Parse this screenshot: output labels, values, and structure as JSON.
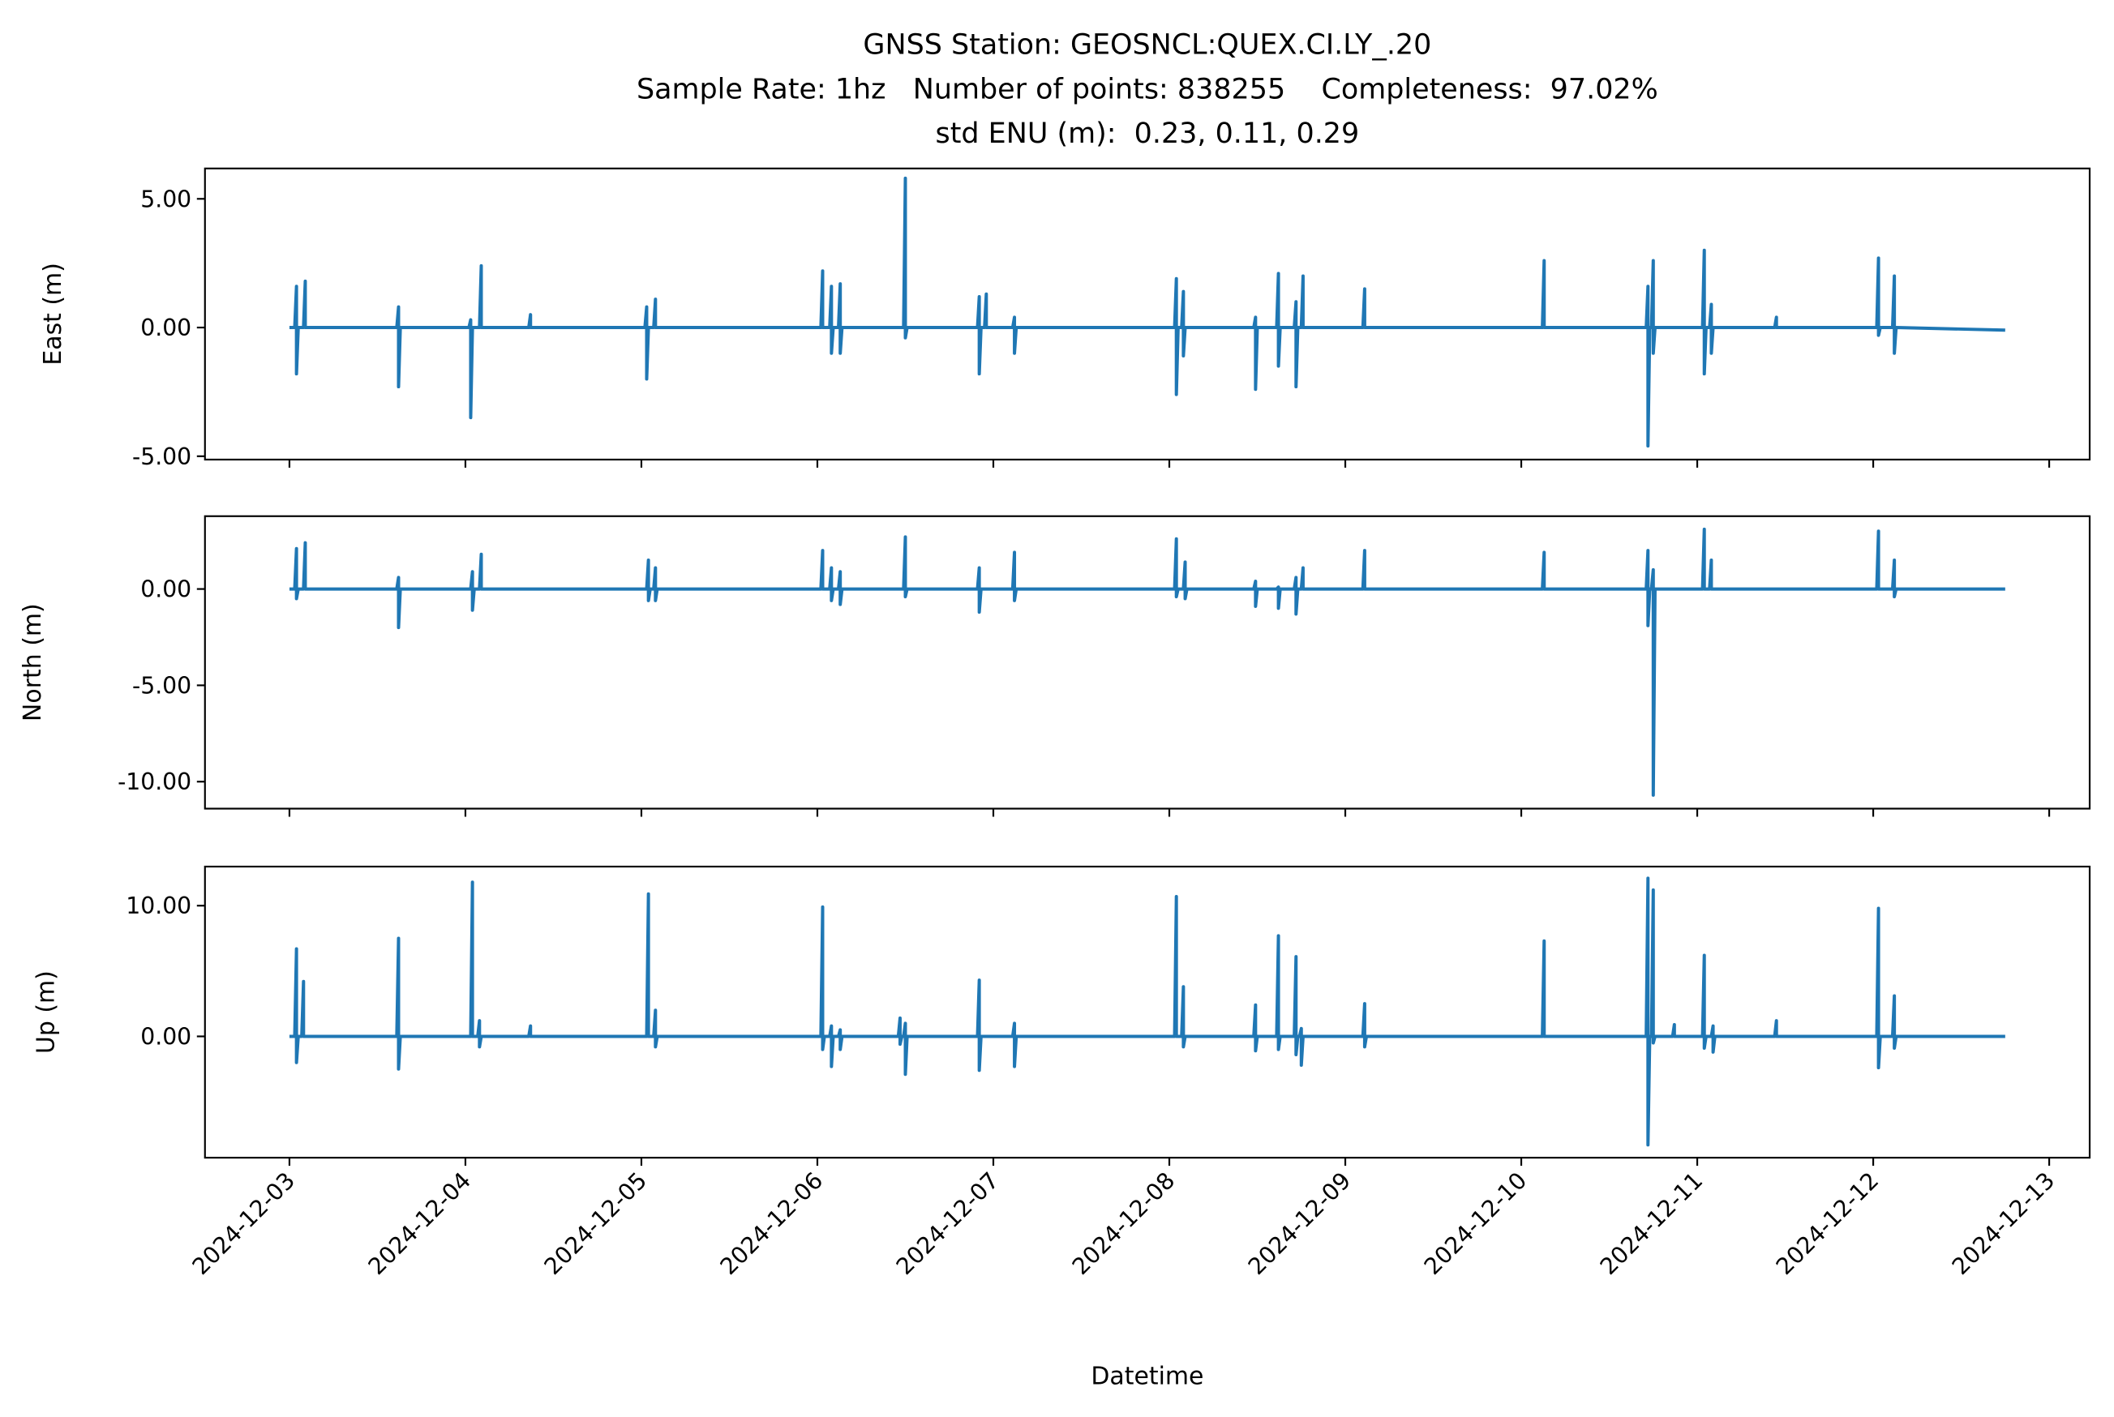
{
  "title": [
    "GNSS Station: GEOSNCL:QUEX.CI.LY_.20",
    "Sample Rate: 1hz   Number of points: 838255    Completeness:  97.02%",
    "std ENU (m):  0.23, 0.11, 0.29"
  ],
  "chart_data": [
    {
      "type": "line",
      "ylabel": "East (m)",
      "xlim": [
        -0.48,
        10.23
      ],
      "ylim": [
        -5.13,
        6.18
      ],
      "yticks": [
        {
          "value": -5,
          "label": "-5.00"
        },
        {
          "value": 0,
          "label": "0.00"
        },
        {
          "value": 5,
          "label": "5.00"
        }
      ],
      "x": [
        0,
        0.03,
        0.04,
        0.04,
        0.05,
        0.08,
        0.09,
        0.09,
        0.1,
        0.61,
        0.62,
        0.62,
        0.63,
        1.02,
        1.03,
        1.03,
        1.04,
        1.08,
        1.09,
        1.09,
        1.1,
        1.36,
        1.37,
        1.37,
        1.38,
        2.02,
        2.03,
        2.03,
        2.04,
        2.07,
        2.08,
        2.08,
        2.09,
        3.02,
        3.03,
        3.03,
        3.04,
        3.07,
        3.08,
        3.08,
        3.09,
        3.12,
        3.13,
        3.13,
        3.14,
        3.49,
        3.5,
        3.5,
        3.51,
        3.91,
        3.92,
        3.92,
        3.93,
        3.95,
        3.96,
        3.96,
        3.97,
        4.11,
        4.12,
        4.12,
        4.13,
        5.03,
        5.04,
        5.04,
        5.05,
        5.07,
        5.08,
        5.08,
        5.09,
        5.48,
        5.49,
        5.49,
        5.5,
        5.61,
        5.62,
        5.62,
        5.63,
        5.71,
        5.72,
        5.72,
        5.73,
        5.75,
        5.76,
        5.76,
        5.77,
        6.1,
        6.11,
        6.11,
        6.12,
        7.12,
        7.13,
        7.13,
        7.14,
        7.71,
        7.72,
        7.72,
        7.73,
        7.74,
        7.75,
        7.75,
        7.76,
        8.03,
        8.04,
        8.04,
        8.05,
        8.07,
        8.08,
        8.08,
        8.09,
        8.44,
        8.45,
        8.45,
        8.46,
        9.02,
        9.03,
        9.03,
        9.04,
        9.11,
        9.12,
        9.12,
        9.13,
        9.75
      ],
      "series": [
        {
          "color": "#1f77b4",
          "values": [
            0,
            0,
            1.6,
            -1.8,
            0,
            0,
            1.8,
            0,
            0,
            0,
            0.8,
            -2.3,
            0,
            0,
            0.3,
            -3.5,
            0,
            0,
            2.4,
            0,
            0,
            0,
            0.5,
            0,
            0,
            0,
            0.8,
            -2.0,
            0,
            0,
            1.1,
            0,
            0,
            0,
            2.2,
            0,
            0,
            0,
            1.6,
            -1.0,
            0,
            0,
            1.7,
            -1.0,
            0,
            0,
            5.8,
            -0.4,
            0,
            0,
            1.2,
            -1.8,
            0,
            0,
            1.3,
            0,
            0,
            0,
            0.4,
            -1.0,
            0,
            0,
            1.9,
            -2.6,
            0,
            0,
            1.4,
            -1.1,
            0,
            0,
            0.4,
            -2.4,
            0,
            0,
            2.1,
            -1.5,
            0,
            0,
            1.0,
            -2.3,
            0,
            0,
            2.0,
            0,
            0,
            0,
            1.5,
            0,
            0,
            0,
            2.6,
            0,
            0,
            0,
            1.6,
            -4.6,
            0,
            0,
            2.6,
            -1.0,
            0,
            0,
            3.0,
            -1.8,
            0,
            0,
            0.9,
            -1.0,
            0,
            0,
            0.4,
            0,
            0,
            0,
            2.7,
            -0.3,
            0,
            0,
            2.0,
            -1.0,
            0,
            -0.1
          ]
        }
      ]
    },
    {
      "type": "line",
      "ylabel": "North (m)",
      "xlim": [
        -0.48,
        10.23
      ],
      "ylim": [
        -11.4,
        3.78
      ],
      "yticks": [
        {
          "value": -10,
          "label": "-10.00"
        },
        {
          "value": -5,
          "label": "-5.00"
        },
        {
          "value": 0,
          "label": "0.00"
        }
      ],
      "x": [
        0,
        0.03,
        0.04,
        0.04,
        0.05,
        0.08,
        0.09,
        0.09,
        0.1,
        0.61,
        0.62,
        0.62,
        0.63,
        1.03,
        1.04,
        1.04,
        1.05,
        1.08,
        1.09,
        1.09,
        1.1,
        2.03,
        2.04,
        2.04,
        2.05,
        2.07,
        2.08,
        2.08,
        2.09,
        3.02,
        3.03,
        3.03,
        3.04,
        3.07,
        3.08,
        3.08,
        3.09,
        3.12,
        3.13,
        3.13,
        3.14,
        3.49,
        3.5,
        3.5,
        3.51,
        3.91,
        3.92,
        3.92,
        3.93,
        4.11,
        4.12,
        4.12,
        4.13,
        5.03,
        5.04,
        5.04,
        5.05,
        5.08,
        5.09,
        5.09,
        5.1,
        5.48,
        5.49,
        5.49,
        5.5,
        5.61,
        5.62,
        5.62,
        5.63,
        5.71,
        5.72,
        5.72,
        5.73,
        5.75,
        5.76,
        5.76,
        5.77,
        6.1,
        6.11,
        6.11,
        6.12,
        7.12,
        7.13,
        7.13,
        7.14,
        7.71,
        7.72,
        7.72,
        7.73,
        7.74,
        7.75,
        7.75,
        7.76,
        8.03,
        8.04,
        8.04,
        8.05,
        8.07,
        8.08,
        8.08,
        8.09,
        9.02,
        9.03,
        9.03,
        9.04,
        9.11,
        9.12,
        9.12,
        9.13,
        9.75
      ],
      "series": [
        {
          "color": "#1f77b4",
          "values": [
            0,
            0,
            2.1,
            -0.5,
            0,
            0,
            2.4,
            0,
            0,
            0,
            0.6,
            -2.0,
            0,
            0,
            0.9,
            -1.1,
            0,
            0,
            1.8,
            0,
            0,
            0,
            1.5,
            -0.6,
            0,
            0,
            1.1,
            -0.6,
            0,
            0,
            2.0,
            0,
            0,
            0,
            1.1,
            -0.6,
            0,
            0,
            0.9,
            -0.8,
            0,
            0,
            2.7,
            -0.4,
            0,
            0,
            1.1,
            -1.2,
            0,
            0,
            1.9,
            -0.6,
            0,
            0,
            2.6,
            -0.4,
            0,
            0,
            1.4,
            -0.5,
            0,
            0,
            0.4,
            -0.9,
            0,
            0,
            0.1,
            -1.0,
            0,
            0,
            0.6,
            -1.3,
            0,
            0,
            1.1,
            0,
            0,
            0,
            2.0,
            0,
            0,
            0,
            1.9,
            0,
            0,
            0,
            2.0,
            -1.9,
            0,
            0,
            1.0,
            -10.7,
            0,
            0,
            3.1,
            0,
            0,
            0,
            1.5,
            0,
            0,
            0,
            3.0,
            0,
            0,
            0,
            1.5,
            -0.4,
            0,
            0
          ]
        }
      ]
    },
    {
      "type": "line",
      "ylabel": "Up (m)",
      "xlabel": "Datetime",
      "xlim": [
        -0.48,
        10.23
      ],
      "ylim": [
        -9.28,
        12.99
      ],
      "yticks": [
        {
          "value": 0,
          "label": "0.00"
        },
        {
          "value": 10,
          "label": "10.00"
        }
      ],
      "xticks": [
        {
          "value": 0,
          "label": "2024-12-03"
        },
        {
          "value": 1,
          "label": "2024-12-04"
        },
        {
          "value": 2,
          "label": "2024-12-05"
        },
        {
          "value": 3,
          "label": "2024-12-06"
        },
        {
          "value": 4,
          "label": "2024-12-07"
        },
        {
          "value": 5,
          "label": "2024-12-08"
        },
        {
          "value": 6,
          "label": "2024-12-09"
        },
        {
          "value": 7,
          "label": "2024-12-10"
        },
        {
          "value": 8,
          "label": "2024-12-11"
        },
        {
          "value": 9,
          "label": "2024-12-12"
        },
        {
          "value": 10,
          "label": "2024-12-13"
        }
      ],
      "x": [
        0,
        0.03,
        0.04,
        0.04,
        0.05,
        0.07,
        0.08,
        0.08,
        0.09,
        0.61,
        0.62,
        0.62,
        0.63,
        1.03,
        1.04,
        1.04,
        1.05,
        1.07,
        1.08,
        1.08,
        1.09,
        1.36,
        1.37,
        1.37,
        1.38,
        2.03,
        2.04,
        2.04,
        2.05,
        2.07,
        2.08,
        2.08,
        2.09,
        3.02,
        3.03,
        3.03,
        3.04,
        3.07,
        3.08,
        3.08,
        3.09,
        3.12,
        3.13,
        3.13,
        3.14,
        3.46,
        3.47,
        3.47,
        3.48,
        3.49,
        3.5,
        3.5,
        3.51,
        3.91,
        3.92,
        3.92,
        3.93,
        4.11,
        4.12,
        4.12,
        4.13,
        5.03,
        5.04,
        5.04,
        5.05,
        5.07,
        5.08,
        5.08,
        5.09,
        5.48,
        5.49,
        5.49,
        5.5,
        5.61,
        5.62,
        5.62,
        5.63,
        5.71,
        5.72,
        5.72,
        5.73,
        5.74,
        5.75,
        5.75,
        5.76,
        6.1,
        6.11,
        6.11,
        6.12,
        7.12,
        7.13,
        7.13,
        7.14,
        7.71,
        7.72,
        7.72,
        7.73,
        7.74,
        7.75,
        7.75,
        7.76,
        7.86,
        7.87,
        7.87,
        7.88,
        8.03,
        8.04,
        8.04,
        8.05,
        8.08,
        8.09,
        8.09,
        8.1,
        8.44,
        8.45,
        8.45,
        8.46,
        9.02,
        9.03,
        9.03,
        9.04,
        9.11,
        9.12,
        9.12,
        9.13,
        9.75
      ],
      "series": [
        {
          "color": "#1f77b4",
          "values": [
            0,
            0,
            6.7,
            -2.0,
            0,
            0,
            4.2,
            0,
            0,
            0,
            7.5,
            -2.5,
            0,
            0,
            11.8,
            0,
            0,
            0,
            1.2,
            -0.8,
            0,
            0,
            0.8,
            0,
            0,
            0,
            10.9,
            0,
            0,
            0,
            2.0,
            -0.8,
            0,
            0,
            9.9,
            -1.0,
            0,
            0,
            0.8,
            -2.3,
            0,
            0,
            0.5,
            -1.0,
            0,
            0,
            1.4,
            -0.6,
            0,
            0,
            1.0,
            -2.9,
            0,
            0,
            4.3,
            -2.6,
            0,
            0,
            1.0,
            -2.3,
            0,
            0,
            10.7,
            0,
            0,
            0,
            3.8,
            -0.8,
            0,
            0,
            2.4,
            -1.1,
            0,
            0,
            7.7,
            -1.0,
            0,
            0,
            6.1,
            -1.4,
            0,
            0,
            0.6,
            -2.2,
            0,
            0,
            2.5,
            -0.8,
            0,
            0,
            7.3,
            0,
            0,
            0,
            12.1,
            -8.3,
            0,
            0,
            11.2,
            -0.5,
            0,
            0,
            0.9,
            0,
            0,
            0,
            6.2,
            -0.9,
            0,
            0,
            0.8,
            -1.2,
            0,
            0,
            1.2,
            0,
            0,
            0,
            9.8,
            -2.4,
            0,
            0,
            3.1,
            -0.9,
            0,
            0
          ]
        }
      ]
    }
  ]
}
